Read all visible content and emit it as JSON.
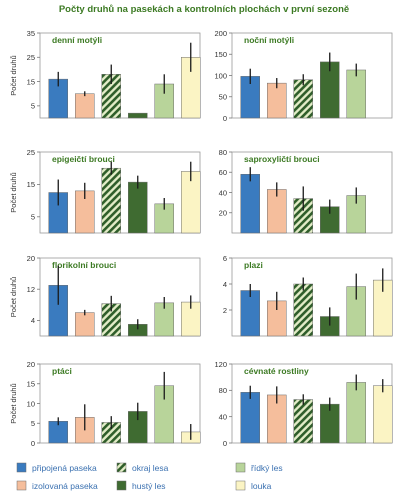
{
  "figure": {
    "title": "Počty druhů na pasekách a kontrolních plochách v první sezoně",
    "ylabel": "Počet druhů"
  },
  "legend": {
    "items": [
      {
        "label": "připojená paseka",
        "color": "#3a7bbf",
        "pattern": "solid"
      },
      {
        "label": "izolovaná paseka",
        "color": "#f5be9c",
        "pattern": "solid"
      },
      {
        "label": "okraj lesa",
        "color": "#2f5e2a",
        "pattern": "hatch"
      },
      {
        "label": "hustý les",
        "color": "#3f6b31",
        "pattern": "solid"
      },
      {
        "label": "řídký les",
        "color": "#b8d49a",
        "pattern": "solid"
      },
      {
        "label": "louka",
        "color": "#fbf4c4",
        "pattern": "solid"
      }
    ]
  },
  "chart_data": [
    {
      "type": "bar",
      "title": "denní motýli",
      "ylabel": "Počet druhů",
      "ylim": [
        0,
        35
      ],
      "yticks": [
        5,
        15,
        25,
        35
      ],
      "categories": [
        "připojená paseka",
        "izolovaná paseka",
        "okraj lesa",
        "hustý les",
        "řídký les",
        "louka"
      ],
      "values": [
        16,
        10,
        18,
        2,
        14,
        25
      ],
      "errors": [
        3,
        1,
        4,
        0,
        4,
        6
      ]
    },
    {
      "type": "bar",
      "title": "noční motýli",
      "ylabel": "",
      "ylim": [
        0,
        200
      ],
      "yticks": [
        0,
        50,
        100,
        150,
        200
      ],
      "categories": [
        "připojená paseka",
        "izolovaná paseka",
        "okraj lesa",
        "hustý les",
        "řídký les"
      ],
      "values": [
        98,
        82,
        90,
        132,
        113
      ],
      "errors": [
        18,
        12,
        13,
        22,
        15
      ]
    },
    {
      "type": "bar",
      "title": "epigeičtí brouci",
      "ylabel": "Počet druhů",
      "ylim": [
        0,
        25
      ],
      "yticks": [
        5,
        15,
        25
      ],
      "categories": [
        "připojená paseka",
        "izolovaná paseka",
        "okraj lesa",
        "hustý les",
        "řídký les",
        "louka"
      ],
      "values": [
        12.5,
        13,
        20,
        15.7,
        9,
        19
      ],
      "errors": [
        4,
        2.5,
        2,
        2,
        1.8,
        3
      ]
    },
    {
      "type": "bar",
      "title": "saproxyličtí brouci",
      "ylabel": "",
      "ylim": [
        0,
        80
      ],
      "yticks": [
        20,
        40,
        60,
        80
      ],
      "categories": [
        "připojená paseka",
        "izolovaná paseka",
        "okraj lesa",
        "hustý les",
        "řídký les"
      ],
      "values": [
        58,
        43,
        34,
        26,
        37
      ],
      "errors": [
        7,
        7,
        12,
        7,
        8
      ]
    },
    {
      "type": "bar",
      "title": "florikolní brouci",
      "ylabel": "Počet druhů",
      "ylim": [
        0,
        20
      ],
      "yticks": [
        4,
        12,
        20
      ],
      "categories": [
        "připojená paseka",
        "izolovaná paseka",
        "okraj lesa",
        "hustý les",
        "řídký les",
        "louka"
      ],
      "values": [
        13,
        6,
        8.3,
        3,
        8.5,
        8.7
      ],
      "errors": [
        5,
        0.7,
        2,
        1.3,
        1.5,
        1.7
      ]
    },
    {
      "type": "bar",
      "title": "plazi",
      "ylabel": "",
      "ylim": [
        0,
        6
      ],
      "yticks": [
        2,
        4,
        6
      ],
      "categories": [
        "připojená paseka",
        "izolovaná paseka",
        "okraj lesa",
        "hustý les",
        "řídký les",
        "louka"
      ],
      "values": [
        3.5,
        2.7,
        4,
        1.5,
        3.8,
        4.3
      ],
      "errors": [
        0.5,
        0.7,
        0.5,
        0.7,
        1,
        0.9
      ]
    },
    {
      "type": "bar",
      "title": "ptáci",
      "ylabel": "Počet druhů",
      "ylim": [
        0,
        20
      ],
      "yticks": [
        0,
        5,
        10,
        15,
        20
      ],
      "categories": [
        "připojená paseka",
        "izolovaná paseka",
        "okraj lesa",
        "hustý les",
        "řídký les",
        "louka"
      ],
      "values": [
        5.5,
        6.5,
        5.2,
        8,
        14.5,
        2.8
      ],
      "errors": [
        1,
        3.3,
        1.6,
        2.2,
        3.5,
        2
      ]
    },
    {
      "type": "bar",
      "title": "cévnaté rostliny",
      "ylabel": "",
      "ylim": [
        0,
        120
      ],
      "yticks": [
        0,
        40,
        80,
        120
      ],
      "categories": [
        "připojená paseka",
        "izolovaná paseka",
        "okraj lesa",
        "hustý les",
        "řídký les",
        "louka"
      ],
      "values": [
        77,
        73,
        66,
        59,
        92,
        87
      ],
      "errors": [
        10,
        13,
        8,
        10,
        12,
        10
      ]
    }
  ]
}
